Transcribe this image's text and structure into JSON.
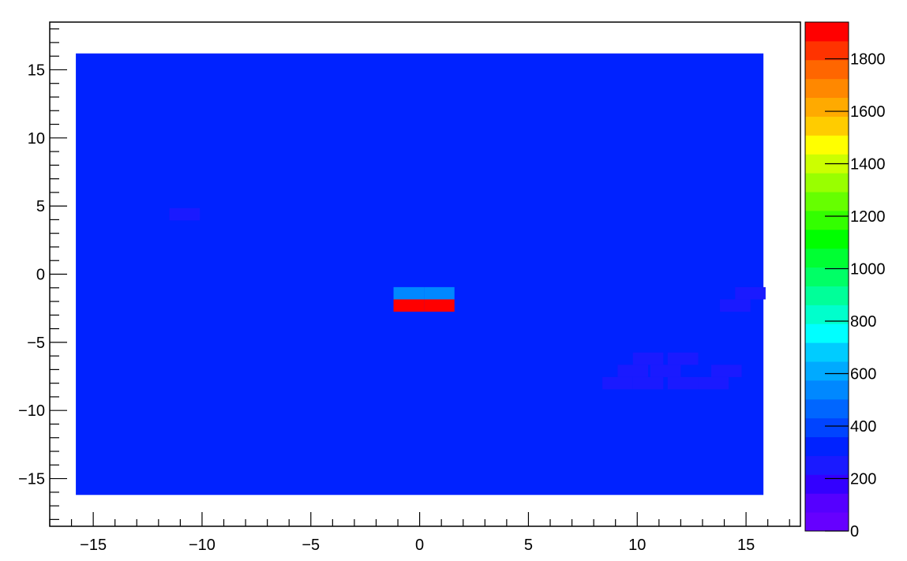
{
  "chart_data": {
    "type": "heatmap",
    "title": "",
    "xlabel": "",
    "ylabel": "",
    "xlim": [
      -17,
      17.5
    ],
    "ylim": [
      -18.5,
      18.5
    ],
    "x_ticks": [
      -15,
      -10,
      -5,
      0,
      5,
      10,
      15
    ],
    "x_tick_labels": [
      "−15",
      "−10",
      "−5",
      "0",
      "5",
      "10",
      "15"
    ],
    "y_ticks": [
      15,
      10,
      5,
      0,
      -5,
      -10,
      -15
    ],
    "y_tick_labels": [
      "15",
      "10",
      "5",
      "0",
      "−5",
      "−10",
      "−15"
    ],
    "grid": false,
    "z_range": [
      0,
      1940
    ],
    "z_ticks": [
      0,
      200,
      400,
      600,
      800,
      1000,
      1200,
      1400,
      1600,
      1800
    ],
    "z_tick_labels": [
      "0",
      "200",
      "400",
      "600",
      "800",
      "1000",
      "1200",
      "1400",
      "1600",
      "1800"
    ],
    "colorbar_colors": [
      "#6600ff",
      "#5500ff",
      "#3300ff",
      "#1a1aff",
      "#0022ff",
      "#0044ff",
      "#0066ff",
      "#0088ff",
      "#00aaff",
      "#00ccff",
      "#00ffff",
      "#00ffcc",
      "#00ff99",
      "#00ff66",
      "#00ff33",
      "#00ff00",
      "#33ff00",
      "#66ff00",
      "#99ff00",
      "#ccff00",
      "#ffff00",
      "#ffcc00",
      "#ffaa00",
      "#ff8800",
      "#ff6600",
      "#ff3300",
      "#ff0000"
    ],
    "cell_width": 1.4,
    "cell_height": 0.9,
    "background_region": {
      "x": [
        -15.8,
        15.8
      ],
      "y": [
        -16.2,
        16.2
      ],
      "value": 350
    },
    "cells": [
      {
        "x": -10.8,
        "y": 4.4,
        "value": 260
      },
      {
        "x": -0.5,
        "y": -1.4,
        "value": 520
      },
      {
        "x": 0.9,
        "y": -1.4,
        "value": 520
      },
      {
        "x": -0.5,
        "y": -2.3,
        "value": 1940
      },
      {
        "x": 0.9,
        "y": -2.3,
        "value": 1940
      },
      {
        "x": 15.2,
        "y": -1.4,
        "value": 260
      },
      {
        "x": 14.5,
        "y": -2.3,
        "value": 260
      },
      {
        "x": 10.5,
        "y": -6.2,
        "value": 260
      },
      {
        "x": 12.1,
        "y": -6.2,
        "value": 260
      },
      {
        "x": 9.8,
        "y": -7.1,
        "value": 260
      },
      {
        "x": 11.3,
        "y": -7.1,
        "value": 260
      },
      {
        "x": 14.1,
        "y": -7.1,
        "value": 260
      },
      {
        "x": 9.1,
        "y": -8.0,
        "value": 260
      },
      {
        "x": 10.5,
        "y": -8.0,
        "value": 260
      },
      {
        "x": 12.1,
        "y": -8.0,
        "value": 260
      },
      {
        "x": 13.5,
        "y": -8.0,
        "value": 260
      }
    ]
  }
}
